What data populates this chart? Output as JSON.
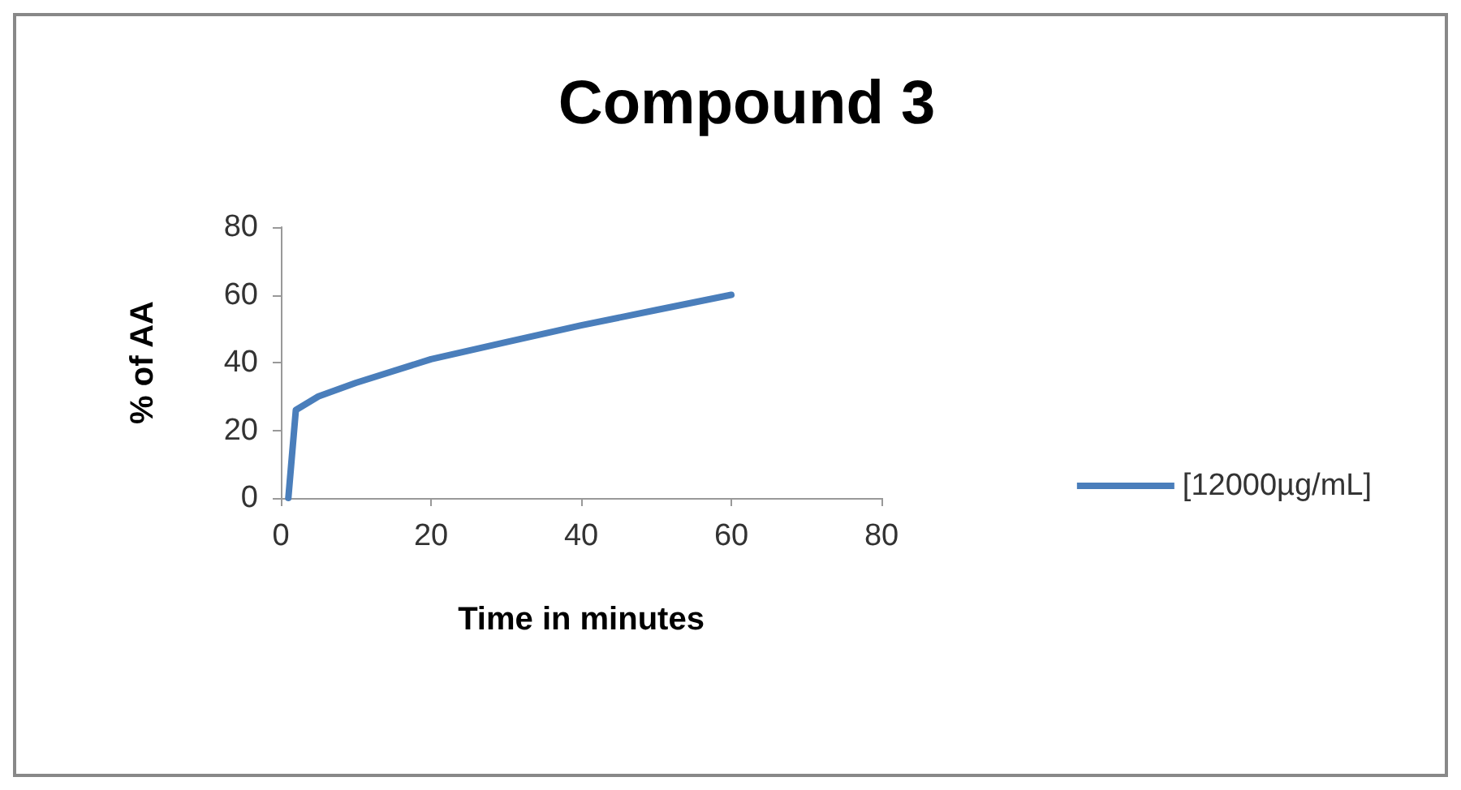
{
  "chart_data": {
    "type": "line",
    "title": "Compound 3",
    "xlabel": "Time in minutes",
    "ylabel": "% of AA",
    "x": [
      1,
      2,
      5,
      10,
      20,
      30,
      40,
      50,
      60
    ],
    "series": [
      {
        "name": "[12000µg/mL]",
        "color": "#4a7ebb",
        "values": [
          0,
          26,
          30,
          34,
          41,
          46,
          51,
          55.5,
          60
        ]
      }
    ],
    "xlim": [
      0,
      80
    ],
    "xticks": [
      0,
      20,
      40,
      60,
      80
    ],
    "ylim": [
      0,
      80
    ],
    "yticks": [
      0,
      20,
      40,
      60,
      80
    ],
    "grid": false,
    "legend": "right",
    "marker": "none",
    "line_style": "solid"
  }
}
